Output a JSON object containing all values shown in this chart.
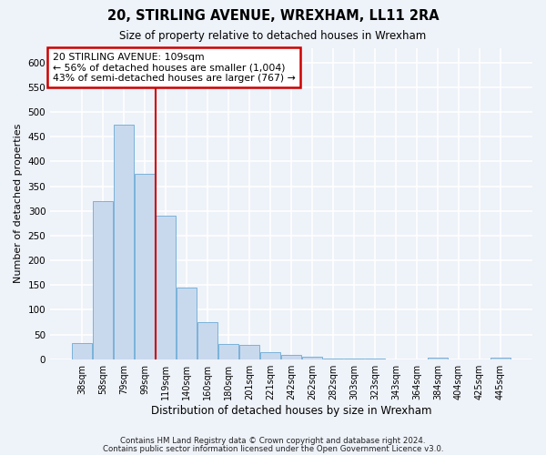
{
  "title": "20, STIRLING AVENUE, WREXHAM, LL11 2RA",
  "subtitle": "Size of property relative to detached houses in Wrexham",
  "xlabel": "Distribution of detached houses by size in Wrexham",
  "ylabel": "Number of detached properties",
  "bar_labels": [
    "38sqm",
    "58sqm",
    "79sqm",
    "99sqm",
    "119sqm",
    "140sqm",
    "160sqm",
    "180sqm",
    "201sqm",
    "221sqm",
    "242sqm",
    "262sqm",
    "282sqm",
    "303sqm",
    "323sqm",
    "343sqm",
    "364sqm",
    "384sqm",
    "404sqm",
    "425sqm",
    "445sqm"
  ],
  "bar_values": [
    32,
    320,
    474,
    375,
    290,
    145,
    75,
    31,
    28,
    15,
    8,
    5,
    2,
    2,
    2,
    0,
    0,
    3,
    0,
    0,
    3
  ],
  "bar_color": "#c8d9ee",
  "bar_edge_color": "#6aaad4",
  "annotation_title": "20 STIRLING AVENUE: 109sqm",
  "annotation_line1": "← 56% of detached houses are smaller (1,004)",
  "annotation_line2": "43% of semi-detached houses are larger (767) →",
  "annotation_box_color": "#ffffff",
  "annotation_box_edge": "#cc0000",
  "vline_color": "#cc0000",
  "ylim": [
    0,
    630
  ],
  "yticks": [
    0,
    50,
    100,
    150,
    200,
    250,
    300,
    350,
    400,
    450,
    500,
    550,
    600
  ],
  "footer1": "Contains HM Land Registry data © Crown copyright and database right 2024.",
  "footer2": "Contains public sector information licensed under the Open Government Licence v3.0.",
  "bg_color": "#eef2f9",
  "plot_bg_color": "#eef2f9",
  "grid_color": "#ffffff",
  "property_sqm": 109,
  "sqm_vals": [
    38,
    58,
    79,
    99,
    119,
    140,
    160,
    180,
    201,
    221,
    242,
    262,
    282,
    303,
    323,
    343,
    364,
    384,
    404,
    425,
    445
  ]
}
